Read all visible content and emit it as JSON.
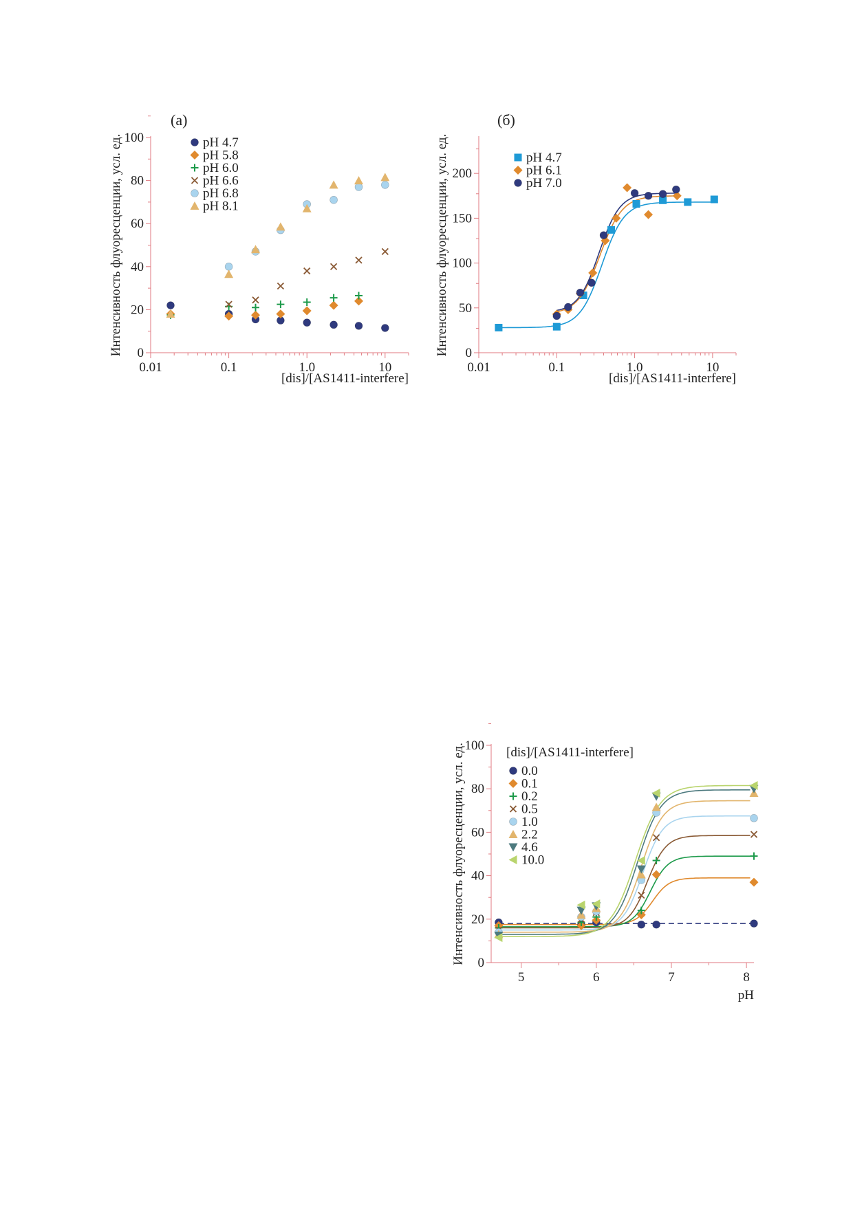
{
  "colors": {
    "axis": "#e07a80",
    "navy": "#2f3a7e",
    "orange": "#e08a2e",
    "green": "#1c9a4a",
    "brown": "#8a5a35",
    "lightblue": "#a9d4ee",
    "sand": "#e2b56d",
    "slate": "#4d7a7f",
    "lime": "#b9d46d",
    "cyan": "#1e9ad6"
  },
  "chart_data": [
    {
      "type": "scatter",
      "panel_label": "(а)",
      "xlabel": "[dis]/[AS1411-interfere]",
      "ylabel": "Интенсивность флуоресценции, усл. ед.",
      "xscale": "log",
      "xlim": [
        0.01,
        20
      ],
      "ylim": [
        0,
        100
      ],
      "x_ticks": [
        "0.01",
        "0.1",
        "1.0",
        "10"
      ],
      "y_ticks": [
        "0",
        "20",
        "40",
        "60",
        "80",
        "100"
      ],
      "legend_position": "top-left",
      "series": [
        {
          "name": "pH 4.7",
          "marker": "circle",
          "color": "#2f3a7e",
          "x": [
            0.018,
            0.1,
            0.22,
            0.46,
            1.0,
            2.2,
            4.6,
            10
          ],
          "y": [
            22,
            18,
            15.5,
            15,
            14,
            13,
            12.5,
            11.5
          ]
        },
        {
          "name": "pH 5.8",
          "marker": "diamond",
          "color": "#e08a2e",
          "x": [
            0.018,
            0.1,
            0.22,
            0.46,
            1.0,
            2.2,
            4.6
          ],
          "y": [
            18,
            17,
            17.5,
            18,
            19.5,
            22,
            24
          ]
        },
        {
          "name": "pH 6.0",
          "marker": "plus",
          "color": "#1c9a4a",
          "x": [
            0.018,
            0.1,
            0.22,
            0.46,
            1.0,
            2.2,
            4.6
          ],
          "y": [
            17.5,
            21.5,
            21,
            22.5,
            23.5,
            25.5,
            26.5
          ]
        },
        {
          "name": "pH 6.6",
          "marker": "cross",
          "color": "#8a5a35",
          "x": [
            0.1,
            0.22,
            0.46,
            1.0,
            2.2,
            4.6,
            10
          ],
          "y": [
            22.5,
            24.5,
            31,
            38,
            40,
            43,
            47
          ]
        },
        {
          "name": "pH 6.8",
          "marker": "circle",
          "color": "#a9d4ee",
          "x": [
            0.1,
            0.22,
            0.46,
            1.0,
            2.2,
            4.6,
            10
          ],
          "y": [
            40,
            47,
            57,
            69,
            71,
            77,
            78
          ]
        },
        {
          "name": "pH 8.1",
          "marker": "triangle-up",
          "color": "#e2b56d",
          "x": [
            0.018,
            0.1,
            0.22,
            0.46,
            1.0,
            2.2,
            4.6,
            10
          ],
          "y": [
            18,
            36.5,
            48,
            58.5,
            67,
            78,
            80,
            81.5
          ]
        }
      ]
    },
    {
      "type": "scatter",
      "panel_label": "(б)",
      "xlabel": "[dis]/[AS1411-interfere]",
      "ylabel": "Интенсивность флуоресценции, усл. ед.",
      "xscale": "log",
      "xlim": [
        0.01,
        20
      ],
      "ylim": [
        0,
        240
      ],
      "x_ticks": [
        "0.01",
        "0.1",
        "1.0",
        "10"
      ],
      "y_ticks": [
        "0",
        "50",
        "100",
        "150",
        "200"
      ],
      "legend_position": "top-left",
      "series": [
        {
          "name": "pH 4.7",
          "marker": "square",
          "color": "#1e9ad6",
          "x": [
            0.018,
            0.1,
            0.22,
            0.5,
            1.05,
            2.3,
            4.8,
            10.5
          ],
          "y": [
            28,
            29,
            64,
            137,
            166,
            170,
            168,
            171
          ]
        },
        {
          "name": "pH 6.1",
          "marker": "diamond",
          "color": "#e08a2e",
          "x": [
            0.1,
            0.14,
            0.2,
            0.29,
            0.42,
            0.58,
            0.8,
            1.5,
            3.5
          ],
          "y": [
            43,
            48,
            66,
            89,
            125,
            150,
            184,
            154,
            175
          ]
        },
        {
          "name": "pH 7.0",
          "marker": "circle",
          "color": "#2f3a7e",
          "x": [
            0.1,
            0.14,
            0.2,
            0.28,
            0.4,
            1.0,
            1.5,
            2.3,
            3.4
          ],
          "y": [
            41,
            51,
            67,
            78,
            131,
            178,
            175,
            177,
            182
          ]
        }
      ],
      "fits": [
        {
          "color": "#1e9ad6",
          "lo": 28,
          "hi": 168,
          "x0": 0.38,
          "slope": 7
        },
        {
          "color": "#e08a2e",
          "lo": 43,
          "hi": 175,
          "x0": 0.36,
          "slope": 7
        },
        {
          "color": "#2f3a7e",
          "lo": 45,
          "hi": 178,
          "x0": 0.35,
          "slope": 7.5
        }
      ]
    },
    {
      "type": "scatter",
      "panel_label": "",
      "legend_title": "[dis]/[AS1411-interfere]",
      "xlabel": "pH",
      "ylabel": "Интенсивность флуоресценции, усл. ед.",
      "xscale": "linear",
      "xlim": [
        4.6,
        8.1
      ],
      "ylim": [
        0,
        100
      ],
      "x_ticks": [
        "5",
        "6",
        "7",
        "8"
      ],
      "y_ticks": [
        "0",
        "20",
        "40",
        "60",
        "80",
        "100"
      ],
      "legend_position": "top-left",
      "series": [
        {
          "name": "0.0",
          "marker": "circle",
          "color": "#2f3a7e",
          "x": [
            4.7,
            5.8,
            6.0,
            6.6,
            6.8,
            8.1
          ],
          "y": [
            18.5,
            17.5,
            18.5,
            17.5,
            17.5,
            18
          ]
        },
        {
          "name": "0.1",
          "marker": "diamond",
          "color": "#e08a2e",
          "x": [
            4.7,
            5.8,
            6.0,
            6.6,
            6.8,
            8.1
          ],
          "y": [
            17,
            17,
            19.5,
            22,
            40.5,
            37
          ]
        },
        {
          "name": "0.2",
          "marker": "plus",
          "color": "#1c9a4a",
          "x": [
            4.7,
            5.8,
            6.0,
            6.6,
            6.8,
            8.1
          ],
          "y": [
            16,
            18.5,
            21,
            24,
            47,
            49
          ]
        },
        {
          "name": "0.5",
          "marker": "cross",
          "color": "#8a5a35",
          "x": [
            4.7,
            5.8,
            6.0,
            6.6,
            6.8,
            8.1
          ],
          "y": [
            15,
            20,
            23,
            31,
            57.5,
            59
          ]
        },
        {
          "name": "1.0",
          "marker": "circle",
          "color": "#a9d4ee",
          "x": [
            4.7,
            5.8,
            6.0,
            6.6,
            6.8,
            8.1
          ],
          "y": [
            14,
            21,
            23.5,
            38,
            69,
            66.5
          ]
        },
        {
          "name": "2.2",
          "marker": "triangle-up",
          "color": "#e2b56d",
          "x": [
            4.7,
            5.8,
            6.0,
            6.6,
            6.8,
            8.1
          ],
          "y": [
            13,
            22,
            25,
            40.5,
            71.5,
            78
          ]
        },
        {
          "name": "4.6",
          "marker": "triangle-down",
          "color": "#4d7a7f",
          "x": [
            4.7,
            5.8,
            6.0,
            6.6,
            6.8,
            8.1
          ],
          "y": [
            12.5,
            24,
            26,
            43,
            76.5,
            80
          ]
        },
        {
          "name": "10.0",
          "marker": "triangle-left",
          "color": "#b9d46d",
          "x": [
            4.7,
            5.8,
            6.0,
            6.6,
            6.8,
            8.1
          ],
          "y": [
            11.5,
            26.5,
            27,
            47,
            78,
            81.5
          ]
        }
      ],
      "fits": [
        {
          "color": "#2f3a7e",
          "dashed": true,
          "lo": 18,
          "hi": 18,
          "x0": 6.6,
          "slope": 8
        },
        {
          "color": "#e08a2e",
          "lo": 17.5,
          "hi": 39,
          "x0": 6.75,
          "slope": 9
        },
        {
          "color": "#1c9a4a",
          "lo": 16.5,
          "hi": 49,
          "x0": 6.72,
          "slope": 8.5
        },
        {
          "color": "#8a5a35",
          "lo": 16,
          "hi": 58.5,
          "x0": 6.68,
          "slope": 8
        },
        {
          "color": "#a9d4ee",
          "lo": 15,
          "hi": 67.5,
          "x0": 6.62,
          "slope": 7.5
        },
        {
          "color": "#e2b56d",
          "lo": 14,
          "hi": 74.5,
          "x0": 6.6,
          "slope": 7
        },
        {
          "color": "#4d7a7f",
          "lo": 13,
          "hi": 79.5,
          "x0": 6.55,
          "slope": 6.5
        },
        {
          "color": "#b9d46d",
          "lo": 12,
          "hi": 81.5,
          "x0": 6.52,
          "slope": 6
        }
      ]
    }
  ]
}
